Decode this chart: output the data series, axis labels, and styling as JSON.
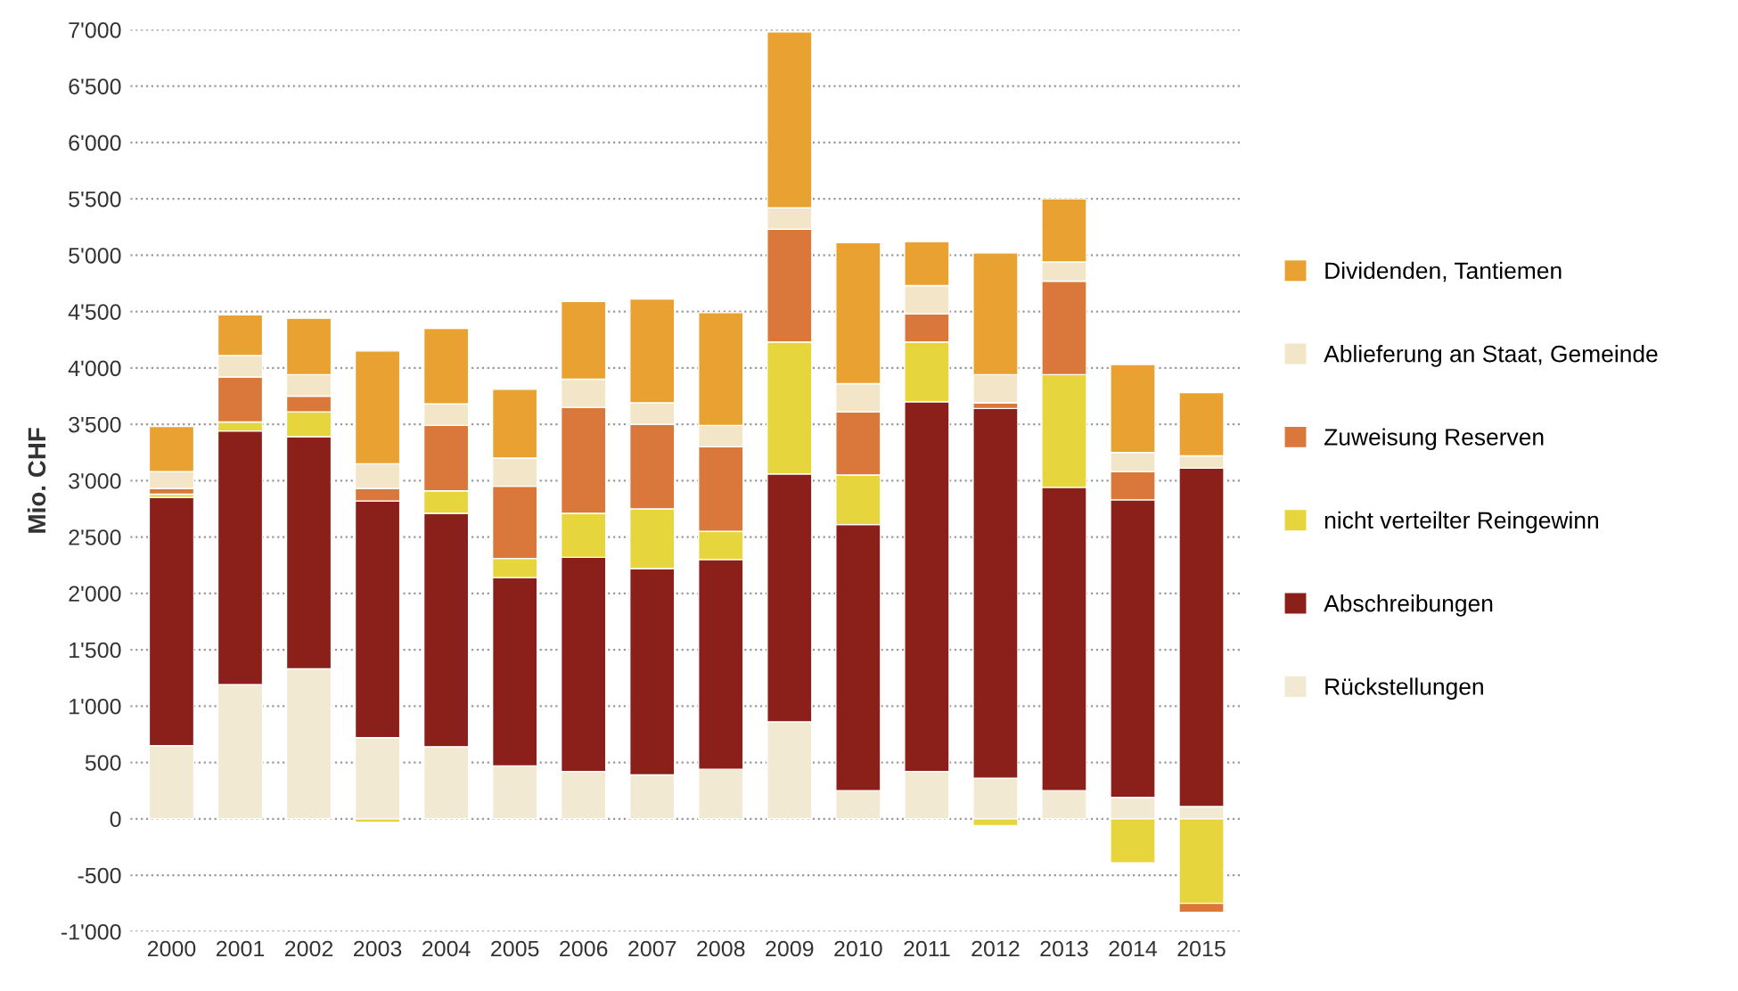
{
  "chart_data": {
    "type": "bar",
    "stacked": true,
    "ylabel": "Mio. CHF",
    "categories": [
      "2000",
      "2001",
      "2002",
      "2003",
      "2004",
      "2005",
      "2006",
      "2007",
      "2008",
      "2009",
      "2010",
      "2011",
      "2012",
      "2013",
      "2014",
      "2015"
    ],
    "series": [
      {
        "name": "Rückstellungen",
        "color": "#f1e9d2",
        "values": [
          650,
          1190,
          1330,
          720,
          640,
          470,
          420,
          390,
          440,
          860,
          250,
          420,
          360,
          250,
          190,
          110
        ]
      },
      {
        "name": "Abschreibungen",
        "color": "#8b1f1a",
        "values": [
          2200,
          2250,
          2060,
          2100,
          2070,
          1670,
          1900,
          1830,
          1860,
          2200,
          2360,
          3280,
          3280,
          2690,
          2640,
          3000
        ]
      },
      {
        "name": "nicht verteilter Reingewinn",
        "color": "#e6d53c",
        "values": [
          30,
          80,
          220,
          -30,
          200,
          170,
          390,
          530,
          250,
          1170,
          440,
          530,
          -60,
          1000,
          -390,
          -750
        ]
      },
      {
        "name": "Zuweisung Reserven",
        "color": "#d9783a",
        "values": [
          50,
          400,
          140,
          110,
          580,
          640,
          940,
          750,
          750,
          1000,
          560,
          250,
          50,
          830,
          250,
          -80
        ]
      },
      {
        "name": "Ablieferung an Staat, Gemeinde",
        "color": "#f3e6c8",
        "values": [
          150,
          190,
          190,
          220,
          190,
          250,
          250,
          190,
          190,
          190,
          250,
          250,
          250,
          170,
          170,
          110
        ]
      },
      {
        "name": "Dividenden, Tantiemen",
        "color": "#e9a232",
        "values": [
          400,
          360,
          500,
          1000,
          670,
          610,
          690,
          920,
          1000,
          1560,
          1250,
          390,
          1080,
          560,
          780,
          560
        ]
      }
    ],
    "ylim": [
      -1000,
      7000
    ],
    "yticks": [
      {
        "value": -1000,
        "label": "-1'000"
      },
      {
        "value": -500,
        "label": "-500"
      },
      0,
      500,
      {
        "value": 1000,
        "label": "1'000"
      },
      {
        "value": 1500,
        "label": "1'500"
      },
      {
        "value": 2000,
        "label": "2'000"
      },
      {
        "value": 2500,
        "label": "2'500"
      },
      {
        "value": 3000,
        "label": "3'000"
      },
      {
        "value": 3500,
        "label": "3'500"
      },
      {
        "value": 4000,
        "label": "4'000"
      },
      {
        "value": 4500,
        "label": "4'500"
      },
      {
        "value": 5000,
        "label": "5'000"
      },
      {
        "value": 5500,
        "label": "5'500"
      },
      {
        "value": 6000,
        "label": "6'000"
      },
      {
        "value": 6500,
        "label": "6'500"
      },
      {
        "value": 7000,
        "label": "7'000"
      }
    ],
    "grid": "y",
    "legend": "right"
  }
}
